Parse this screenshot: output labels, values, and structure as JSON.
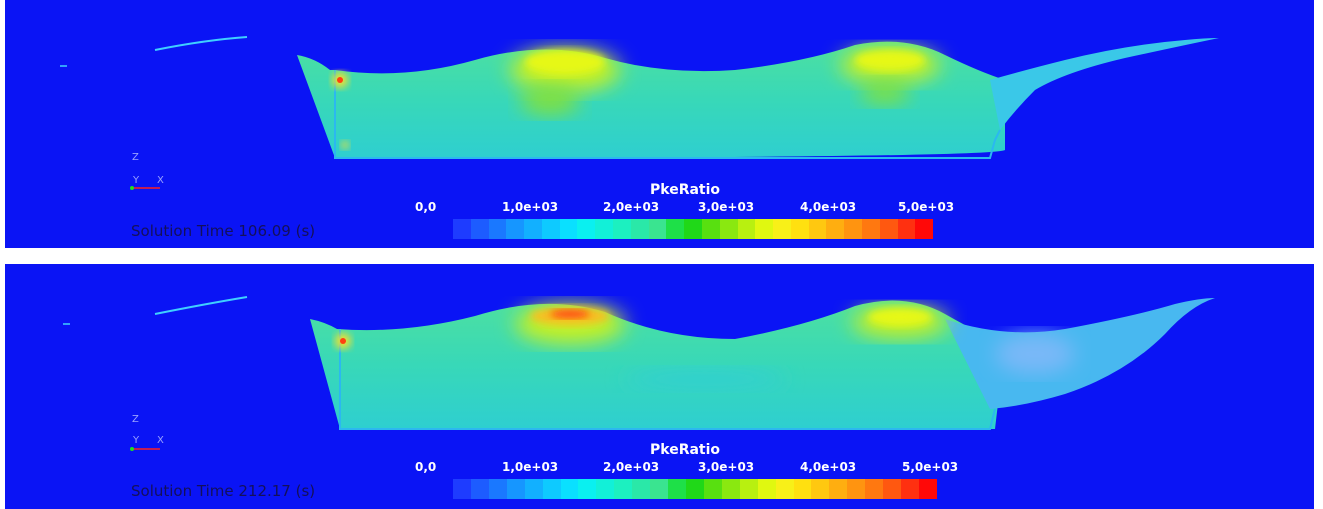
{
  "panels": [
    {
      "legend_title": "PkeRatio",
      "ticks": [
        "0,0",
        "1,0e+03",
        "2,0e+03",
        "3,0e+03",
        "4,0e+03",
        "5,0e+03"
      ],
      "solution_time": "Solution Time 106.09 (s)",
      "axis": {
        "z": "Z",
        "y": "Y",
        "x": "X"
      }
    },
    {
      "legend_title": "PkeRatio",
      "ticks": [
        "0,0",
        "1,0e+03",
        "2,0e+03",
        "3,0e+03",
        "4,0e+03",
        "5,0e+03"
      ],
      "solution_time": "Solution Time 212.17 (s)",
      "axis": {
        "z": "Z",
        "y": "Y",
        "x": "X"
      }
    }
  ],
  "colormap": [
    "#1e3cff",
    "#1d5cff",
    "#1a78ff",
    "#1696ff",
    "#12b0ff",
    "#0ecaff",
    "#0ae0ff",
    "#0af0f0",
    "#12f0d8",
    "#1cf0c0",
    "#2ae8a8",
    "#3ae490",
    "#1ee048",
    "#20d818",
    "#58e010",
    "#8ae810",
    "#b8f010",
    "#e0f810",
    "#f8f018",
    "#ffe010",
    "#ffc810",
    "#ffae10",
    "#ff9410",
    "#ff7810",
    "#ff5810",
    "#ff3010",
    "#ff0808"
  ],
  "background_color": "#0a14f5"
}
